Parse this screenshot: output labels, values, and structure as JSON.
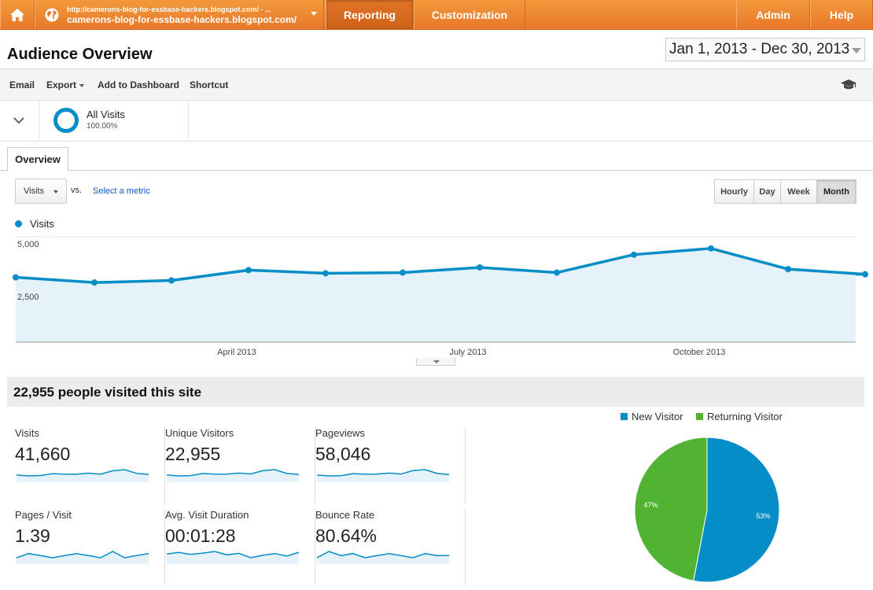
{
  "topbar": {
    "account_url_top": "http://camerons-blog-for-essbase-hackers.blogspot.com/ - ...",
    "account_url": "camerons-blog-for-essbase-hackers.blogspot.com/",
    "reporting": "Reporting",
    "customization": "Customization",
    "admin": "Admin",
    "help": "Help"
  },
  "page": {
    "title": "Audience Overview",
    "date_range": "Jan 1, 2013 - Dec 30, 2013"
  },
  "toolbar": {
    "email": "Email",
    "export": "Export",
    "add_to_dashboard": "Add to Dashboard",
    "shortcut": "Shortcut"
  },
  "segment": {
    "name": "All Visits",
    "percent": "100.00%"
  },
  "tabs": {
    "overview": "Overview"
  },
  "chart_controls": {
    "metric": "Visits",
    "vs": "vs.",
    "select_metric": "Select a metric",
    "granularity": [
      "Hourly",
      "Day",
      "Week",
      "Month"
    ],
    "active_granularity": "Month"
  },
  "chart_data": [
    {
      "type": "area",
      "series": [
        {
          "name": "Visits",
          "values": [
            3100,
            2850,
            2950,
            3450,
            3300,
            3330,
            3580,
            3330,
            4200,
            4500,
            3500,
            3250
          ]
        }
      ],
      "x": [
        "2013-01",
        "2013-02",
        "2013-03",
        "2013-04",
        "2013-05",
        "2013-06",
        "2013-07",
        "2013-08",
        "2013-09",
        "2013-10",
        "2013-11",
        "2013-12"
      ],
      "x_tick_labels": [
        "April 2013",
        "July 2013",
        "October 2013"
      ],
      "y_tick_labels": [
        "5,000",
        "2,500"
      ],
      "ylim": [
        0,
        5000
      ],
      "color": "#058dc7",
      "legend": "top-left",
      "grid": true
    },
    {
      "type": "pie",
      "categories": [
        "New Visitor",
        "Returning Visitor"
      ],
      "values": [
        53,
        47
      ],
      "labels": [
        "53%",
        "47%"
      ],
      "colors": [
        "#058dc7",
        "#50b432"
      ],
      "legend": "top"
    }
  ],
  "summary": {
    "headline": "22,955 people visited this site"
  },
  "metrics": [
    {
      "label": "Visits",
      "value": "41,660",
      "spark": [
        3100,
        2850,
        2950,
        3450,
        3300,
        3330,
        3580,
        3330,
        4200,
        4500,
        3500,
        3250
      ]
    },
    {
      "label": "Unique Visitors",
      "value": "22,955",
      "spark": [
        1700,
        1550,
        1600,
        1900,
        1800,
        1820,
        1950,
        1830,
        2300,
        2450,
        1900,
        1780
      ]
    },
    {
      "label": "Pageviews",
      "value": "58,046",
      "spark": [
        4300,
        4000,
        4100,
        4800,
        4600,
        4650,
        5000,
        4650,
        5900,
        6200,
        4900,
        4500
      ]
    },
    {
      "label": "Pages / Visit",
      "value": "1.39",
      "spark": [
        1.38,
        1.4,
        1.39,
        1.38,
        1.39,
        1.4,
        1.39,
        1.38,
        1.41,
        1.38,
        1.39,
        1.4
      ]
    },
    {
      "label": "Avg. Visit Duration",
      "value": "00:01:28",
      "spark": [
        88,
        95,
        86,
        92,
        100,
        84,
        91,
        70,
        82,
        90,
        78,
        96
      ]
    },
    {
      "label": "Bounce Rate",
      "value": "80.64%",
      "spark": [
        80.5,
        80.8,
        80.6,
        80.7,
        80.5,
        80.6,
        80.7,
        80.6,
        80.5,
        80.7,
        80.6,
        80.6
      ]
    }
  ]
}
